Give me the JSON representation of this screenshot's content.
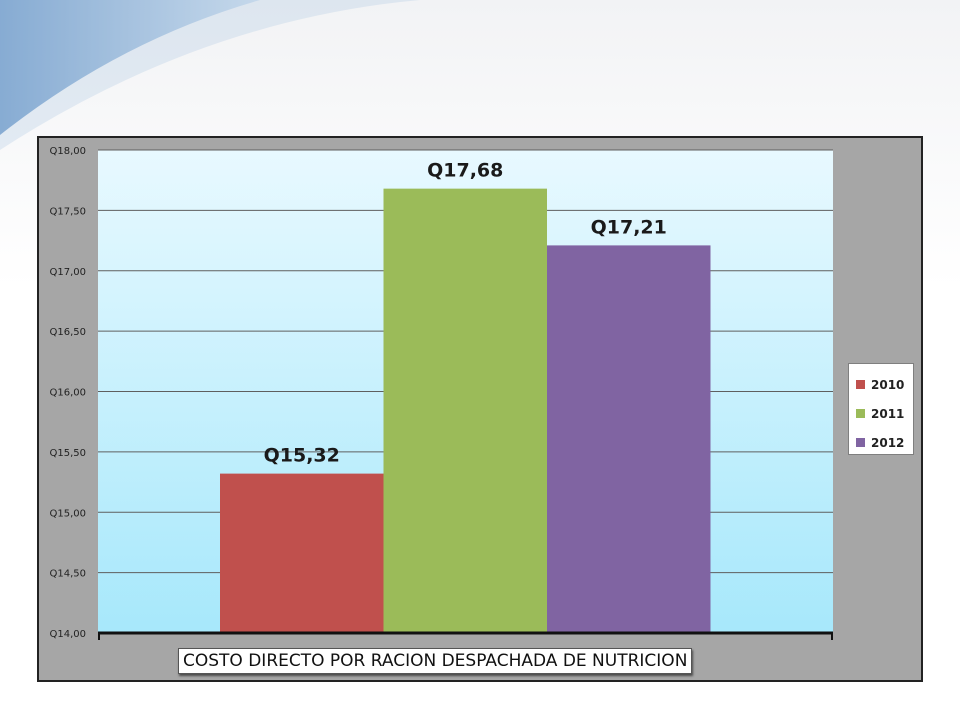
{
  "chart_data": {
    "type": "bar",
    "title": "",
    "categories": [
      "COSTO DIRECTO POR RACION DESPACHADA DE NUTRICION"
    ],
    "series": [
      {
        "name": "2010",
        "values": [
          15.32
        ],
        "label": "Q15,32",
        "color": "#c0504d"
      },
      {
        "name": "2011",
        "values": [
          17.68
        ],
        "label": "Q17,68",
        "color": "#9bbb59"
      },
      {
        "name": "2012",
        "values": [
          17.21
        ],
        "label": "Q17,21",
        "color": "#8064a2"
      }
    ],
    "ylim": [
      14.0,
      18.0
    ],
    "y_ticks": [
      {
        "value": 14.0,
        "label": "Q14,00"
      },
      {
        "value": 14.5,
        "label": "Q14,50"
      },
      {
        "value": 15.0,
        "label": "Q15,00"
      },
      {
        "value": 15.5,
        "label": "Q15,50"
      },
      {
        "value": 16.0,
        "label": "Q16,00"
      },
      {
        "value": 16.5,
        "label": "Q16,50"
      },
      {
        "value": 17.0,
        "label": "Q17,00"
      },
      {
        "value": 17.5,
        "label": "Q17,50"
      },
      {
        "value": 18.0,
        "label": "Q18,00"
      }
    ],
    "xlabel": "",
    "ylabel": "",
    "grid": true,
    "legend": "right",
    "colors": {
      "frame": "#a6a6a6",
      "plot_top": "#e8f9ff",
      "plot_bottom": "#a7e8fb",
      "gridline": "#5f5f5f"
    }
  }
}
